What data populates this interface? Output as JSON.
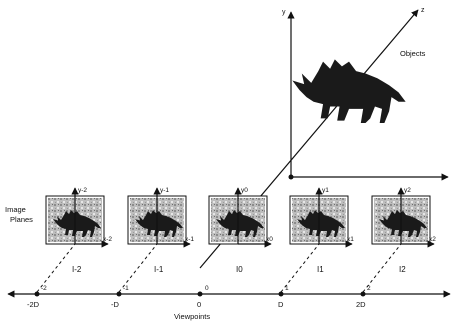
{
  "world_axes": {
    "y": "y",
    "z": "z"
  },
  "objects_label": "Objects",
  "image_planes_label_line1": "Image",
  "image_planes_label_line2": "Planes",
  "viewpoints_label": "Viewpoints",
  "frames": [
    {
      "name": "I-2",
      "y_axis": "y-2",
      "x_axis": "x-2"
    },
    {
      "name": "I-1",
      "y_axis": "y-1",
      "x_axis": "x-1"
    },
    {
      "name": "I0",
      "y_axis": "y0",
      "x_axis": "x0"
    },
    {
      "name": "I1",
      "y_axis": "y1",
      "x_axis": "x1"
    },
    {
      "name": "I2",
      "y_axis": "y2",
      "x_axis": "x2"
    }
  ],
  "viewpoint_ticks": [
    "-2D",
    "-D",
    "0",
    "D",
    "2D"
  ],
  "viewpoint_markers": [
    "-2",
    "-1",
    "0",
    "1",
    "2"
  ]
}
